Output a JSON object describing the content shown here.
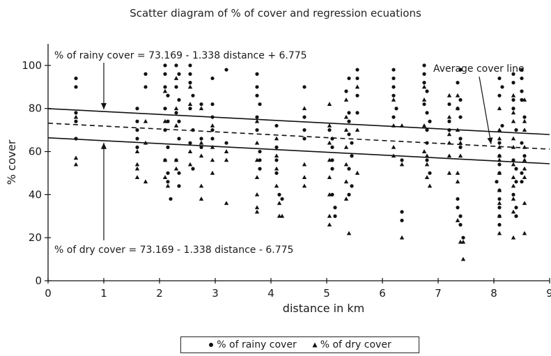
{
  "chart_data": {
    "type": "scatter",
    "title": "Scatter diagram of % of cover and regression ecuations",
    "xlabel": "distance in km",
    "ylabel": "% cover",
    "xlim": [
      0,
      9
    ],
    "ylim": [
      0,
      110
    ],
    "x_ticks": [
      "0",
      "1",
      "2",
      "3",
      "4",
      "5",
      "6",
      "7",
      "8",
      "9"
    ],
    "y_ticks": [
      "0",
      "20",
      "40",
      "60",
      "80",
      "100"
    ],
    "grid": false,
    "legend_position": "bottom-center",
    "series": [
      {
        "name": "% of rainy cover",
        "marker": "circle",
        "points": [
          [
            0.5,
            94
          ],
          [
            0.5,
            90
          ],
          [
            0.5,
            78
          ],
          [
            0.5,
            74
          ],
          [
            0.5,
            66
          ],
          [
            1.6,
            80
          ],
          [
            1.6,
            74
          ],
          [
            1.6,
            70
          ],
          [
            1.6,
            66
          ],
          [
            1.6,
            62
          ],
          [
            1.75,
            96
          ],
          [
            1.75,
            90
          ],
          [
            2.1,
            100
          ],
          [
            2.1,
            96
          ],
          [
            2.1,
            90
          ],
          [
            2.15,
            86
          ],
          [
            2.1,
            80
          ],
          [
            2.15,
            74
          ],
          [
            2.1,
            70
          ],
          [
            2.15,
            62
          ],
          [
            2.1,
            56
          ],
          [
            2.15,
            50
          ],
          [
            2.15,
            46
          ],
          [
            2.2,
            38
          ],
          [
            2.3,
            100
          ],
          [
            2.35,
            96
          ],
          [
            2.3,
            90
          ],
          [
            2.35,
            84
          ],
          [
            2.3,
            78
          ],
          [
            2.35,
            74
          ],
          [
            2.35,
            66
          ],
          [
            2.3,
            56
          ],
          [
            2.35,
            50
          ],
          [
            2.35,
            44
          ],
          [
            2.55,
            100
          ],
          [
            2.55,
            96
          ],
          [
            2.55,
            92
          ],
          [
            2.6,
            86
          ],
          [
            2.55,
            80
          ],
          [
            2.6,
            70
          ],
          [
            2.55,
            64
          ],
          [
            2.6,
            52
          ],
          [
            2.75,
            82
          ],
          [
            2.75,
            66
          ],
          [
            2.75,
            62
          ],
          [
            2.95,
            94
          ],
          [
            2.95,
            82
          ],
          [
            2.95,
            76
          ],
          [
            2.95,
            70
          ],
          [
            2.95,
            66
          ],
          [
            3.2,
            98
          ],
          [
            3.2,
            64
          ],
          [
            3.75,
            96
          ],
          [
            3.75,
            90
          ],
          [
            3.75,
            86
          ],
          [
            3.8,
            82
          ],
          [
            3.75,
            76
          ],
          [
            3.75,
            70
          ],
          [
            3.8,
            60
          ],
          [
            3.8,
            56
          ],
          [
            3.8,
            52
          ],
          [
            4.1,
            72
          ],
          [
            4.1,
            62
          ],
          [
            4.1,
            56
          ],
          [
            4.1,
            50
          ],
          [
            4.15,
            40
          ],
          [
            4.2,
            38
          ],
          [
            4.6,
            90
          ],
          [
            4.6,
            76
          ],
          [
            4.6,
            70
          ],
          [
            4.6,
            66
          ],
          [
            5.05,
            70
          ],
          [
            5.1,
            66
          ],
          [
            5.1,
            62
          ],
          [
            5.1,
            56
          ],
          [
            5.1,
            52
          ],
          [
            5.1,
            40
          ],
          [
            5.15,
            34
          ],
          [
            5.15,
            30
          ],
          [
            5.4,
            94
          ],
          [
            5.35,
            88
          ],
          [
            5.4,
            78
          ],
          [
            5.4,
            74
          ],
          [
            5.4,
            68
          ],
          [
            5.45,
            64
          ],
          [
            5.45,
            58
          ],
          [
            5.4,
            52
          ],
          [
            5.45,
            44
          ],
          [
            5.4,
            40
          ],
          [
            5.55,
            98
          ],
          [
            5.55,
            94
          ],
          [
            5.55,
            86
          ],
          [
            5.55,
            78
          ],
          [
            6.2,
            98
          ],
          [
            6.2,
            94
          ],
          [
            6.2,
            90
          ],
          [
            6.2,
            86
          ],
          [
            6.25,
            80
          ],
          [
            6.2,
            76
          ],
          [
            6.35,
            56
          ],
          [
            6.35,
            32
          ],
          [
            6.35,
            28
          ],
          [
            6.75,
            100
          ],
          [
            6.75,
            96
          ],
          [
            6.75,
            92
          ],
          [
            6.8,
            88
          ],
          [
            6.75,
            82
          ],
          [
            6.8,
            78
          ],
          [
            6.85,
            74
          ],
          [
            6.8,
            70
          ],
          [
            6.8,
            64
          ],
          [
            6.8,
            56
          ],
          [
            6.85,
            50
          ],
          [
            7.2,
            82
          ],
          [
            7.2,
            74
          ],
          [
            7.2,
            70
          ],
          [
            7.4,
            98
          ],
          [
            7.35,
            92
          ],
          [
            7.4,
            84
          ],
          [
            7.35,
            80
          ],
          [
            7.4,
            76
          ],
          [
            7.4,
            66
          ],
          [
            7.4,
            62
          ],
          [
            7.35,
            38
          ],
          [
            7.35,
            34
          ],
          [
            7.4,
            30
          ],
          [
            7.4,
            26
          ],
          [
            7.45,
            20
          ],
          [
            8.1,
            94
          ],
          [
            8.15,
            90
          ],
          [
            8.1,
            86
          ],
          [
            8.15,
            72
          ],
          [
            8.1,
            64
          ],
          [
            8.1,
            58
          ],
          [
            8.1,
            54
          ],
          [
            8.1,
            50
          ],
          [
            8.05,
            46
          ],
          [
            8.1,
            42
          ],
          [
            8.1,
            38
          ],
          [
            8.1,
            34
          ],
          [
            8.1,
            30
          ],
          [
            8.1,
            26
          ],
          [
            8.35,
            96
          ],
          [
            8.35,
            92
          ],
          [
            8.35,
            84
          ],
          [
            8.35,
            80
          ],
          [
            8.4,
            70
          ],
          [
            8.35,
            56
          ],
          [
            8.4,
            52
          ],
          [
            8.4,
            46
          ],
          [
            8.35,
            40
          ],
          [
            8.4,
            34
          ],
          [
            8.4,
            30
          ],
          [
            8.5,
            98
          ],
          [
            8.5,
            94
          ],
          [
            8.5,
            88
          ],
          [
            8.5,
            84
          ],
          [
            8.55,
            76
          ],
          [
            8.5,
            64
          ],
          [
            8.55,
            58
          ],
          [
            8.5,
            50
          ],
          [
            8.5,
            46
          ]
        ]
      },
      {
        "name": "% of dry cover",
        "marker": "triangle",
        "points": [
          [
            0.5,
            76
          ],
          [
            0.5,
            57
          ],
          [
            0.5,
            54
          ],
          [
            1.6,
            60
          ],
          [
            1.6,
            54
          ],
          [
            1.6,
            52
          ],
          [
            1.6,
            48
          ],
          [
            1.75,
            74
          ],
          [
            1.75,
            64
          ],
          [
            1.75,
            46
          ],
          [
            2.1,
            88
          ],
          [
            2.1,
            74
          ],
          [
            2.1,
            56
          ],
          [
            2.1,
            48
          ],
          [
            2.15,
            44
          ],
          [
            2.3,
            94
          ],
          [
            2.3,
            80
          ],
          [
            2.3,
            72
          ],
          [
            2.3,
            56
          ],
          [
            2.3,
            52
          ],
          [
            2.55,
            90
          ],
          [
            2.55,
            82
          ],
          [
            2.55,
            60
          ],
          [
            2.55,
            54
          ],
          [
            2.75,
            80
          ],
          [
            2.75,
            64
          ],
          [
            2.75,
            58
          ],
          [
            2.75,
            44
          ],
          [
            2.75,
            38
          ],
          [
            2.95,
            72
          ],
          [
            2.95,
            62
          ],
          [
            2.95,
            56
          ],
          [
            2.95,
            50
          ],
          [
            3.2,
            60
          ],
          [
            3.2,
            56
          ],
          [
            3.2,
            36
          ],
          [
            3.75,
            74
          ],
          [
            3.75,
            64
          ],
          [
            3.75,
            56
          ],
          [
            3.75,
            48
          ],
          [
            3.75,
            40
          ],
          [
            3.75,
            34
          ],
          [
            3.75,
            32
          ],
          [
            4.1,
            66
          ],
          [
            4.1,
            58
          ],
          [
            4.1,
            52
          ],
          [
            4.1,
            44
          ],
          [
            4.15,
            36
          ],
          [
            4.15,
            30
          ],
          [
            4.2,
            30
          ],
          [
            4.6,
            80
          ],
          [
            4.6,
            54
          ],
          [
            4.6,
            48
          ],
          [
            4.6,
            44
          ],
          [
            5.05,
            82
          ],
          [
            5.05,
            72
          ],
          [
            5.05,
            64
          ],
          [
            5.05,
            56
          ],
          [
            5.05,
            48
          ],
          [
            5.05,
            40
          ],
          [
            5.05,
            30
          ],
          [
            5.05,
            26
          ],
          [
            5.35,
            84
          ],
          [
            5.35,
            76
          ],
          [
            5.35,
            70
          ],
          [
            5.35,
            62
          ],
          [
            5.35,
            54
          ],
          [
            5.35,
            46
          ],
          [
            5.35,
            38
          ],
          [
            5.4,
            22
          ],
          [
            5.55,
            90
          ],
          [
            5.55,
            70
          ],
          [
            5.55,
            50
          ],
          [
            6.2,
            84
          ],
          [
            6.2,
            72
          ],
          [
            6.2,
            62
          ],
          [
            6.2,
            58
          ],
          [
            6.35,
            72
          ],
          [
            6.35,
            54
          ],
          [
            6.35,
            20
          ],
          [
            6.75,
            90
          ],
          [
            6.75,
            84
          ],
          [
            6.75,
            72
          ],
          [
            6.75,
            60
          ],
          [
            6.8,
            58
          ],
          [
            6.8,
            54
          ],
          [
            6.8,
            48
          ],
          [
            6.85,
            44
          ],
          [
            7.2,
            86
          ],
          [
            7.2,
            76
          ],
          [
            7.2,
            68
          ],
          [
            7.2,
            64
          ],
          [
            7.2,
            58
          ],
          [
            7.2,
            50
          ],
          [
            7.35,
            86
          ],
          [
            7.35,
            80
          ],
          [
            7.35,
            70
          ],
          [
            7.4,
            64
          ],
          [
            7.4,
            58
          ],
          [
            7.35,
            50
          ],
          [
            7.35,
            46
          ],
          [
            7.35,
            28
          ],
          [
            7.4,
            18
          ],
          [
            7.45,
            18
          ],
          [
            7.45,
            10
          ],
          [
            8.1,
            80
          ],
          [
            8.1,
            70
          ],
          [
            8.1,
            66
          ],
          [
            8.1,
            62
          ],
          [
            8.1,
            58
          ],
          [
            8.1,
            56
          ],
          [
            8.1,
            50
          ],
          [
            8.1,
            42
          ],
          [
            8.1,
            36
          ],
          [
            8.1,
            30
          ],
          [
            8.1,
            22
          ],
          [
            8.35,
            86
          ],
          [
            8.35,
            78
          ],
          [
            8.35,
            74
          ],
          [
            8.35,
            66
          ],
          [
            8.35,
            62
          ],
          [
            8.35,
            54
          ],
          [
            8.35,
            48
          ],
          [
            8.35,
            44
          ],
          [
            8.35,
            38
          ],
          [
            8.35,
            32
          ],
          [
            8.35,
            20
          ],
          [
            8.55,
            84
          ],
          [
            8.55,
            74
          ],
          [
            8.55,
            70
          ],
          [
            8.55,
            62
          ],
          [
            8.55,
            56
          ],
          [
            8.55,
            52
          ],
          [
            8.55,
            48
          ],
          [
            8.55,
            36
          ],
          [
            8.55,
            22
          ]
        ]
      }
    ],
    "lines": [
      {
        "name": "rainy",
        "style": "solid",
        "intercept": 79.944,
        "slope": -1.338
      },
      {
        "name": "average",
        "style": "dashed",
        "intercept": 73.169,
        "slope": -1.338
      },
      {
        "name": "dry",
        "style": "solid",
        "intercept": 66.394,
        "slope": -1.338
      }
    ],
    "annotations": {
      "rainy_equation": "% of rainy cover = 73.169 - 1.338 distance + 6.775",
      "dry_equation": "% of dry cover = 73.169 - 1.338 distance - 6.775",
      "average_line_label": "Average cover line"
    }
  }
}
